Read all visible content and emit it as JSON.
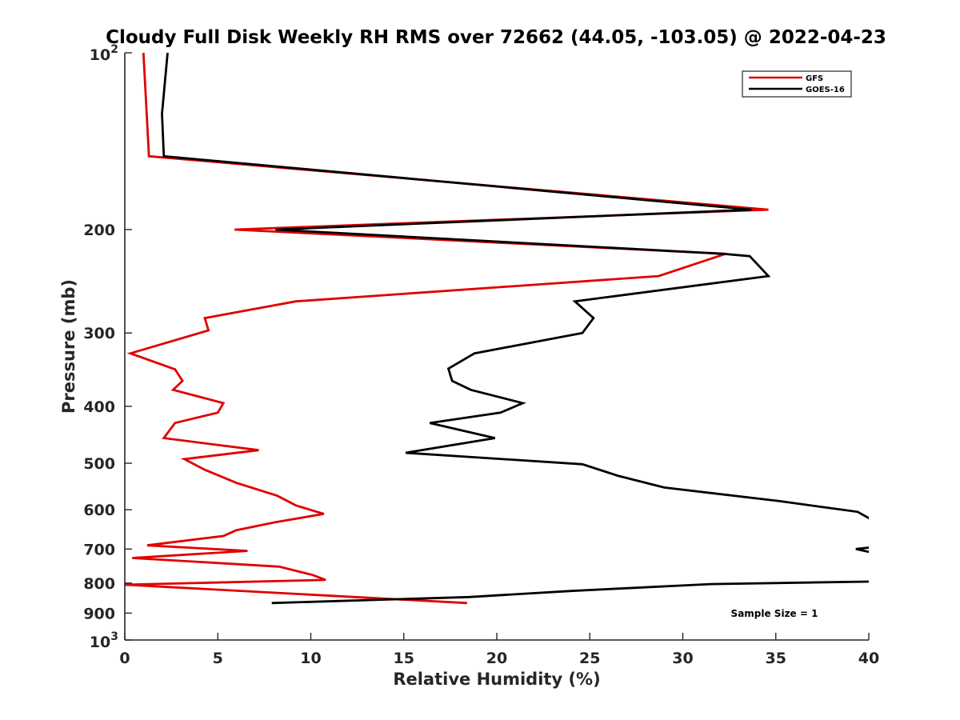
{
  "chart_data": {
    "type": "line",
    "title": "Cloudy Full Disk Weekly RH RMS over 72662 (44.05, -103.05) @ 2022-04-23",
    "xlabel": "Relative Humidity (%)",
    "ylabel": "Pressure (mb)",
    "xlim": [
      0,
      40
    ],
    "ylim": [
      100,
      1000
    ],
    "y_scale": "log",
    "y_reversed": true,
    "x_ticks": [
      "0",
      "5",
      "10",
      "15",
      "20",
      "25",
      "30",
      "35",
      "40"
    ],
    "y_ticks": [
      {
        "value": 100,
        "label": "10",
        "sup": "2"
      },
      {
        "value": 200,
        "label": "200"
      },
      {
        "value": 300,
        "label": "300"
      },
      {
        "value": 400,
        "label": "400"
      },
      {
        "value": 500,
        "label": "500"
      },
      {
        "value": 600,
        "label": "600"
      },
      {
        "value": 700,
        "label": "700"
      },
      {
        "value": 800,
        "label": "800"
      },
      {
        "value": 900,
        "label": "900"
      },
      {
        "value": 1000,
        "label": "10",
        "sup": "3"
      }
    ],
    "legend_position": "top-right",
    "grid": false,
    "annotation": "Sample Size = 1",
    "series": [
      {
        "name": "GFS",
        "color": "#e00000",
        "points": [
          [
            1.0,
            100
          ],
          [
            1.3,
            150
          ],
          [
            34.6,
            185
          ],
          [
            5.9,
            200
          ],
          [
            32.3,
            220
          ],
          [
            28.7,
            240
          ],
          [
            9.2,
            265
          ],
          [
            4.3,
            283
          ],
          [
            4.5,
            297
          ],
          [
            0.3,
            325
          ],
          [
            2.7,
            346
          ],
          [
            3.1,
            362
          ],
          [
            2.6,
            375
          ],
          [
            5.3,
            395
          ],
          [
            5.0,
            410
          ],
          [
            2.7,
            427
          ],
          [
            2.1,
            453
          ],
          [
            7.2,
            475
          ],
          [
            3.2,
            492
          ],
          [
            4.3,
            513
          ],
          [
            6.0,
            540
          ],
          [
            8.2,
            568
          ],
          [
            9.2,
            590
          ],
          [
            10.7,
            610
          ],
          [
            8.1,
            630
          ],
          [
            6.0,
            650
          ],
          [
            5.3,
            665
          ],
          [
            1.2,
            690
          ],
          [
            6.6,
            705
          ],
          [
            0.4,
            725
          ],
          [
            8.3,
            750
          ],
          [
            10.1,
            775
          ],
          [
            10.8,
            790
          ],
          [
            0.0,
            805
          ],
          [
            18.4,
            865
          ]
        ]
      },
      {
        "name": "GOES-16",
        "color": "#000000",
        "points": [
          [
            2.3,
            100
          ],
          [
            2.0,
            127
          ],
          [
            2.1,
            150
          ],
          [
            33.7,
            185
          ],
          [
            8.1,
            200
          ],
          [
            32.2,
            220
          ],
          [
            33.6,
            222
          ],
          [
            34.6,
            240
          ],
          [
            24.2,
            265
          ],
          [
            25.2,
            283
          ],
          [
            24.6,
            300
          ],
          [
            18.8,
            325
          ],
          [
            17.4,
            345
          ],
          [
            17.6,
            362
          ],
          [
            18.6,
            375
          ],
          [
            21.4,
            395
          ],
          [
            20.2,
            410
          ],
          [
            16.4,
            427
          ],
          [
            19.9,
            453
          ],
          [
            15.1,
            480
          ],
          [
            24.6,
            502
          ],
          [
            26.5,
            525
          ],
          [
            29.0,
            550
          ],
          [
            35.2,
            580
          ],
          [
            39.4,
            605
          ],
          [
            40.2,
            625
          ],
          null,
          [
            39.3,
            700
          ],
          [
            40.2,
            695
          ],
          [
            40.2,
            710
          ],
          [
            39.3,
            700
          ],
          null,
          [
            40.2,
            795
          ],
          [
            31.5,
            803
          ],
          [
            24.0,
            825
          ],
          [
            18.5,
            845
          ],
          [
            7.9,
            865
          ]
        ]
      }
    ]
  }
}
